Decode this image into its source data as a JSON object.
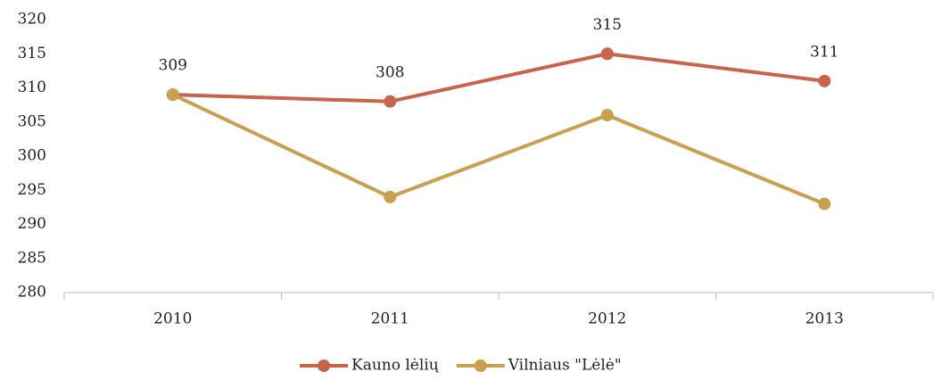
{
  "chart_data": {
    "type": "line",
    "categories": [
      "2010",
      "2011",
      "2012",
      "2013"
    ],
    "series": [
      {
        "name": "Kauno lėlių",
        "color": "#c9634a",
        "values": [
          309,
          308,
          315,
          311
        ],
        "data_labels": true
      },
      {
        "name": "Vilniaus \"Lėlė\"",
        "color": "#c9a04e",
        "values": [
          309,
          294,
          306,
          293
        ],
        "data_labels": false
      }
    ],
    "ylim": [
      280,
      320
    ],
    "yticks": [
      280,
      285,
      290,
      295,
      300,
      305,
      310,
      315,
      320
    ],
    "grid": false,
    "legend": "bottom"
  }
}
